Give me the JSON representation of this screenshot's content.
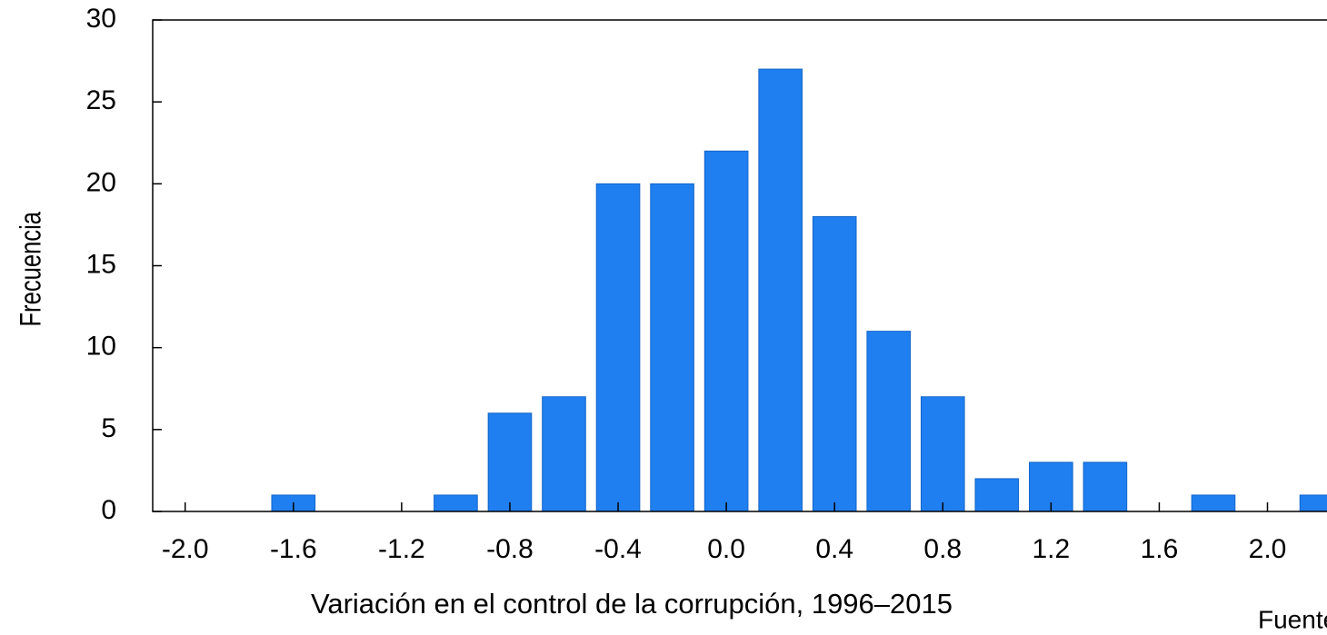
{
  "chart_data": {
    "type": "histogram",
    "xlabel": "Variación en el control de la corrupción, 1996–2015",
    "ylabel": "Frecuencia",
    "source": "Fuente: Banc",
    "bins": [
      -1.7,
      -1.5,
      -1.3,
      -1.1,
      -0.9,
      -0.7,
      -0.5,
      -0.3,
      -0.1,
      0.1,
      0.3,
      0.5,
      0.7,
      0.9,
      1.1,
      1.3,
      1.5,
      1.7,
      1.9,
      2.1,
      2.3
    ],
    "counts": [
      1,
      0,
      0,
      1,
      6,
      7,
      20,
      20,
      22,
      27,
      18,
      11,
      7,
      2,
      3,
      3,
      0,
      1,
      0,
      1
    ],
    "color": "#1f7ff0",
    "xlim": [
      -2.12,
      2.22
    ],
    "ylim": [
      0,
      30
    ],
    "xticks": [
      {
        "value": -2.0,
        "label": "-2.0"
      },
      -1.6,
      -1.2,
      -0.8,
      -0.4,
      {
        "value": 0,
        "label": "0.0"
      },
      0.4,
      0.8,
      1.2,
      1.6,
      {
        "value": 2.0,
        "label": "2.0"
      }
    ],
    "yticks": [
      0,
      5,
      10,
      15,
      20,
      25,
      30
    ],
    "grid": false
  }
}
